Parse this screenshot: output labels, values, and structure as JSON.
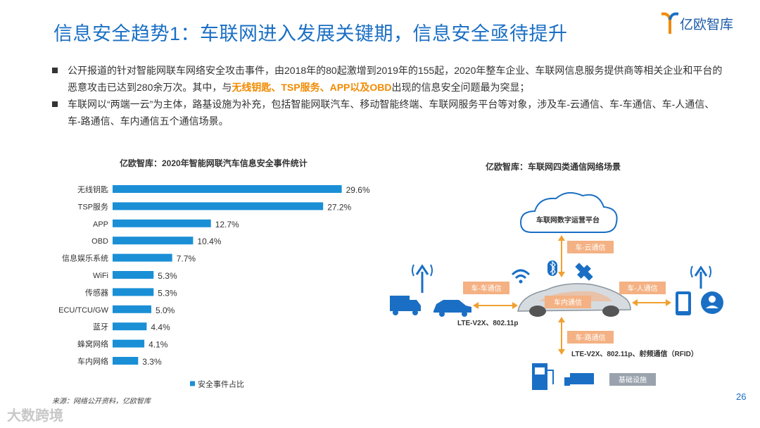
{
  "header": {
    "title": "信息安全趋势1：车联网进入发展关键期，信息安全亟待提升",
    "logo_text": "亿欧智库"
  },
  "bullets": [
    {
      "pre": "公开报道的针对智能网联车网络安全攻击事件，由2018年的80起激增到2019年的155起，2020年整车企业、车联网信息服务提供商等相关企业和平台的恶意攻击已达到280余万次。其中，与",
      "highlight": "无线钥匙、TSP服务、APP以及OBD",
      "post": "出现的信息安全问题最为突显；"
    },
    {
      "pre": "车联网以“两端一云”为主体，路基设施为补充，包括智能网联汽车、移动智能终端、车联网服务平台等对象，涉及车-云通信、车-车通信、车-人通信、车-路通信、车内通信五个通信场景。",
      "highlight": "",
      "post": ""
    }
  ],
  "chart_data": {
    "type": "bar",
    "orientation": "horizontal",
    "title": "亿欧智库：2020年智能网联汽车信息安全事件统计",
    "categories": [
      "无线钥匙",
      "TSP服务",
      "APP",
      "OBD",
      "信息娱乐系统",
      "WiFi",
      "传感器",
      "ECU/TCU/GW",
      "蓝牙",
      "蜂窝网络",
      "车内网络"
    ],
    "series": [
      {
        "name": "安全事件占比",
        "values": [
          29.6,
          27.2,
          12.7,
          10.4,
          7.7,
          5.3,
          5.3,
          5.0,
          4.4,
          4.1,
          3.3
        ],
        "labels": [
          "29.6%",
          "27.2%",
          "12.7%",
          "10.4%",
          "7.7%",
          "5.3%",
          "5.3%",
          "5.0%",
          "4.4%",
          "4.1%",
          "3.3%"
        ]
      }
    ],
    "xlim": [
      0,
      30
    ],
    "grid": false,
    "legend": "bottom-left",
    "color": "#1a8fd6"
  },
  "diagram": {
    "title": "亿欧智库：车联网四类通信网络场景",
    "cloud_label": "车联网数字运营平台",
    "labels": {
      "car_cloud": "车-云通信",
      "car_car": "车-车通信",
      "car_person": "车-人通信",
      "in_car": "车内通信",
      "car_road": "车-路通信",
      "lte_1": "LTE-V2X、802.11p",
      "lte_2": "LTE-V2X、802.11p、射频通信（RFID）",
      "infrastructure": "基础设施"
    },
    "colors": {
      "label_bg": "#f4b183",
      "arrow": "#f0a030",
      "blue": "#1a6fc4"
    }
  },
  "footer": {
    "source": "来源：网络公开资料，亿欧智库",
    "page": "26",
    "watermark": "大数跨境"
  }
}
